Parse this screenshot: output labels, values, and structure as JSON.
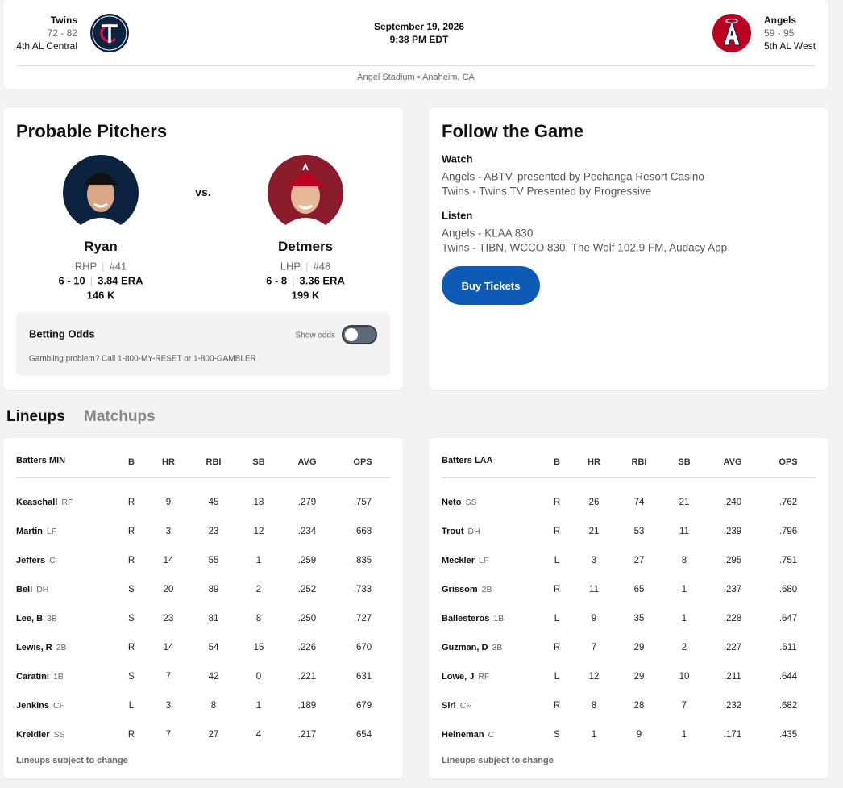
{
  "header": {
    "away": {
      "name": "Twins",
      "record": "72 - 82",
      "standing": "4th AL Central"
    },
    "home": {
      "name": "Angels",
      "record": "59 - 95",
      "standing": "5th AL West"
    },
    "date": "September 19, 2026",
    "time": "9:38 PM EDT",
    "venue": "Angel Stadium • Anaheim, CA"
  },
  "pitchers": {
    "title": "Probable Pitchers",
    "vs": "vs.",
    "away": {
      "name": "Ryan",
      "hand": "RHP",
      "number": "#41",
      "record": "6 - 10",
      "era": "3.84 ERA",
      "strikeouts": "146 K"
    },
    "home": {
      "name": "Detmers",
      "hand": "LHP",
      "number": "#48",
      "record": "6 - 8",
      "era": "3.36 ERA",
      "strikeouts": "199 K"
    }
  },
  "odds": {
    "title": "Betting Odds",
    "toggle_label": "Show odds",
    "note": "Gambling problem? Call 1-800-MY-RESET or 1-800-GAMBLER"
  },
  "follow": {
    "title": "Follow the Game",
    "watch_title": "Watch",
    "watch": [
      "Angels - ABTV, presented by Pechanga Resort Casino",
      "Twins - Twins.TV Presented by Progressive"
    ],
    "listen_title": "Listen",
    "listen": [
      "Angels - KLAA 830",
      "Twins - TIBN, WCCO 830, The Wolf 102.9 FM, Audacy App"
    ],
    "button": "Buy Tickets"
  },
  "tabs": [
    "Lineups",
    "Matchups"
  ],
  "lineups": [
    {
      "columns": [
        "Batters MIN",
        "B",
        "HR",
        "RBI",
        "SB",
        "AVG",
        "OPS"
      ],
      "rows": [
        [
          "Keaschall",
          "RF",
          "R",
          9,
          45,
          18,
          ".279",
          ".757"
        ],
        [
          "Martin",
          "LF",
          "R",
          3,
          23,
          12,
          ".234",
          ".668"
        ],
        [
          "Jeffers",
          "C",
          "R",
          14,
          55,
          1,
          ".259",
          ".835"
        ],
        [
          "Bell",
          "DH",
          "S",
          20,
          89,
          2,
          ".252",
          ".733"
        ],
        [
          "Lee, B",
          "3B",
          "S",
          23,
          81,
          8,
          ".250",
          ".727"
        ],
        [
          "Lewis, R",
          "2B",
          "R",
          14,
          54,
          15,
          ".226",
          ".670"
        ],
        [
          "Caratini",
          "1B",
          "S",
          7,
          42,
          0,
          ".221",
          ".631"
        ],
        [
          "Jenkins",
          "CF",
          "L",
          3,
          8,
          1,
          ".189",
          ".679"
        ],
        [
          "Kreidler",
          "SS",
          "R",
          7,
          27,
          4,
          ".217",
          ".654"
        ]
      ],
      "footer": "Lineups subject to change"
    },
    {
      "columns": [
        "Batters LAA",
        "B",
        "HR",
        "RBI",
        "SB",
        "AVG",
        "OPS"
      ],
      "rows": [
        [
          "Neto",
          "SS",
          "R",
          26,
          74,
          21,
          ".240",
          ".762"
        ],
        [
          "Trout",
          "DH",
          "R",
          21,
          53,
          11,
          ".239",
          ".796"
        ],
        [
          "Meckler",
          "LF",
          "L",
          3,
          27,
          8,
          ".295",
          ".751"
        ],
        [
          "Grissom",
          "2B",
          "R",
          11,
          65,
          1,
          ".237",
          ".680"
        ],
        [
          "Ballesteros",
          "1B",
          "L",
          9,
          35,
          1,
          ".228",
          ".647"
        ],
        [
          "Guzman, D",
          "3B",
          "R",
          7,
          29,
          2,
          ".227",
          ".611"
        ],
        [
          "Lowe, J",
          "RF",
          "L",
          12,
          29,
          10,
          ".211",
          ".644"
        ],
        [
          "Siri",
          "CF",
          "R",
          8,
          28,
          7,
          ".232",
          ".682"
        ],
        [
          "Heineman",
          "C",
          "S",
          1,
          9,
          1,
          ".171",
          ".435"
        ]
      ],
      "footer": "Lineups subject to change"
    }
  ]
}
